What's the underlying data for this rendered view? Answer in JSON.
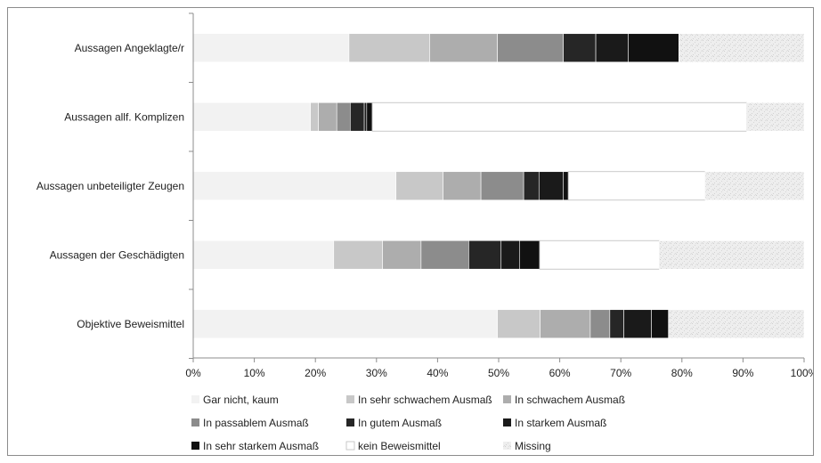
{
  "chart_data": {
    "type": "bar",
    "stacked": true,
    "orientation": "horizontal",
    "percent": true,
    "categories": [
      "Aussagen Angeklagte/r",
      "Aussagen allf. Komplizen",
      "Aussagen unbeteiligter Zeugen",
      "Aussagen der Geschädigten",
      "Objektive Beweismittel"
    ],
    "x_ticks": [
      "0%",
      "10%",
      "20%",
      "30%",
      "40%",
      "50%",
      "60%",
      "70%",
      "80%",
      "90%",
      "100%"
    ],
    "xlim": [
      0,
      100
    ],
    "legend_placement": "bottom",
    "grid": false,
    "series": [
      {
        "name": "Gar nicht, kaum",
        "color": "#f2f2f2",
        "values": [
          25.5,
          19.2,
          33.2,
          23.0,
          49.8
        ]
      },
      {
        "name": "In sehr schwachem Ausmaß",
        "color": "#c8c8c8",
        "values": [
          13.2,
          1.3,
          7.7,
          8.0,
          7.0
        ]
      },
      {
        "name": "In schwachem Ausmaß",
        "color": "#adadad",
        "values": [
          11.1,
          3.0,
          6.2,
          6.3,
          8.2
        ]
      },
      {
        "name": "In passablem Ausmaß",
        "color": "#8c8c8c",
        "values": [
          10.8,
          2.2,
          7.0,
          7.8,
          3.2
        ]
      },
      {
        "name": "In gutem Ausmaß",
        "color": "#262626",
        "values": [
          5.3,
          2.3,
          2.5,
          5.3,
          2.3
        ]
      },
      {
        "name": "In starkem Ausmaß",
        "color": "#1a1a1a",
        "values": [
          5.3,
          0.4,
          4.0,
          3.0,
          4.5
        ]
      },
      {
        "name": "In sehr starkem Ausmaß",
        "color": "#111111",
        "values": [
          8.3,
          0.9,
          0.8,
          3.3,
          2.8
        ]
      },
      {
        "name": "kein Beweismittel",
        "color": "#ffffff",
        "values": [
          0,
          61.3,
          22.4,
          19.6,
          0
        ]
      },
      {
        "name": "Missing",
        "color": "#e6e6e6",
        "values": [
          20.5,
          9.4,
          16.2,
          23.7,
          22.2
        ]
      }
    ]
  }
}
